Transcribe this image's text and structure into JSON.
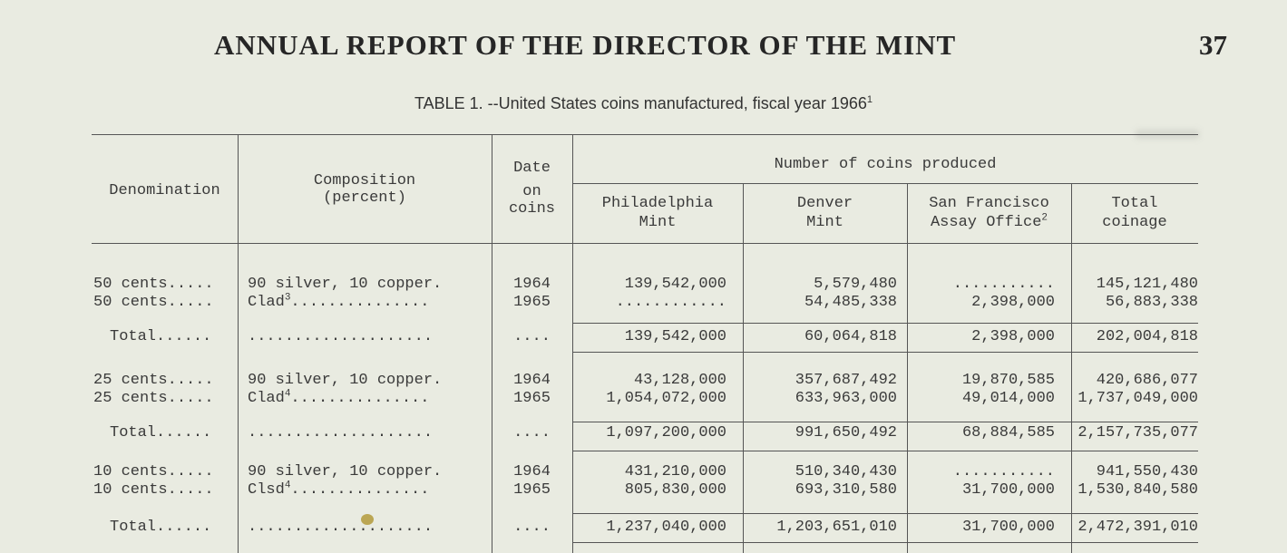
{
  "header": {
    "title": "ANNUAL REPORT OF THE DIRECTOR OF THE MINT",
    "page_number": "37"
  },
  "caption": {
    "text": "TABLE 1. --United States coins manufactured, fiscal year 1966",
    "footnote_mark": "1"
  },
  "columns": {
    "denomination": "Denomination",
    "composition_line1": "Composition",
    "composition_line2": "(percent)",
    "date_line1": "Date",
    "date_line2": "on",
    "date_line3": "coins",
    "group": "Number of coins produced",
    "philadelphia_line1": "Philadelphia",
    "philadelphia_line2": "Mint",
    "denver_line1": "Denver",
    "denver_line2": "Mint",
    "sanfrancisco_line1": "San Francisco",
    "sanfrancisco_line2": "Assay Office",
    "sanfrancisco_note": "2",
    "total_line1": "Total",
    "total_line2": "coinage"
  },
  "rows": [
    {
      "denomination": "50 cents.....",
      "composition": "90 silver, 10 copper.",
      "note": "",
      "date": "1964",
      "philadelphia": "139,542,000",
      "denver": "5,579,480",
      "sanfrancisco": "...........",
      "total": "145,121,480"
    },
    {
      "denomination": "50 cents.....",
      "composition": "Clad",
      "note": "3",
      "composition_dots": "...............",
      "date": "1965",
      "philadelphia": "............",
      "denver": "54,485,338",
      "sanfrancisco": "2,398,000",
      "total": "56,883,338"
    },
    {
      "denomination": "Total......",
      "composition": "....................",
      "date": "....",
      "philadelphia": "139,542,000",
      "denver": "60,064,818",
      "sanfrancisco": "2,398,000",
      "total": "202,004,818"
    },
    {
      "denomination": "25 cents.....",
      "composition": "90 silver, 10 copper.",
      "date": "1964",
      "philadelphia": "43,128,000",
      "denver": "357,687,492",
      "sanfrancisco": "19,870,585",
      "total": "420,686,077"
    },
    {
      "denomination": "25 cents.....",
      "composition": "Clad",
      "note": "4",
      "composition_dots": "...............",
      "date": "1965",
      "philadelphia": "1,054,072,000",
      "denver": "633,963,000",
      "sanfrancisco": "49,014,000",
      "total": "1,737,049,000"
    },
    {
      "denomination": "Total......",
      "composition": "....................",
      "date": "....",
      "philadelphia": "1,097,200,000",
      "denver": "991,650,492",
      "sanfrancisco": "68,884,585",
      "total": "2,157,735,077"
    },
    {
      "denomination": "10 cents.....",
      "composition": "90 silver, 10 copper.",
      "date": "1964",
      "philadelphia": "431,210,000",
      "denver": "510,340,430",
      "sanfrancisco": "...........",
      "total": "941,550,430"
    },
    {
      "denomination": "10 cents.....",
      "composition": "Clsd",
      "note": "4",
      "composition_dots": "...............",
      "date": "1965",
      "philadelphia": "805,830,000",
      "denver": "693,310,580",
      "sanfrancisco": "31,700,000",
      "total": "1,530,840,580"
    },
    {
      "denomination": "Total......",
      "composition": "....................",
      "date": "....",
      "philadelphia": "1,237,040,000",
      "denver": "1,203,651,010",
      "sanfrancisco": "31,700,000",
      "total": "2,472,391,010"
    }
  ]
}
